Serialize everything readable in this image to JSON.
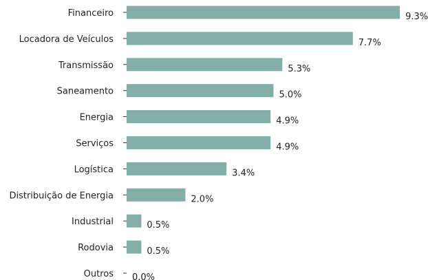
{
  "chart_data": {
    "type": "bar",
    "orientation": "horizontal",
    "categories": [
      "Financeiro",
      "Locadora de Veículos",
      "Transmissão",
      "Saneamento",
      "Energia",
      "Serviços",
      "Logística",
      "Distribuição de Energia",
      "Industrial",
      "Rodovia",
      "Outros"
    ],
    "values": [
      9.3,
      7.7,
      5.3,
      5.0,
      4.9,
      4.9,
      3.4,
      2.0,
      0.5,
      0.5,
      0.0
    ],
    "value_labels": [
      "9.3%",
      "7.7%",
      "5.3%",
      "5.0%",
      "4.9%",
      "4.9%",
      "3.4%",
      "2.0%",
      "0.5%",
      "0.5%",
      "0.0%"
    ],
    "bar_color": "#84aea8",
    "title": "",
    "xlabel": "",
    "ylabel": "",
    "xlim": [
      0,
      9.3
    ],
    "grid": false,
    "legend": "none"
  }
}
